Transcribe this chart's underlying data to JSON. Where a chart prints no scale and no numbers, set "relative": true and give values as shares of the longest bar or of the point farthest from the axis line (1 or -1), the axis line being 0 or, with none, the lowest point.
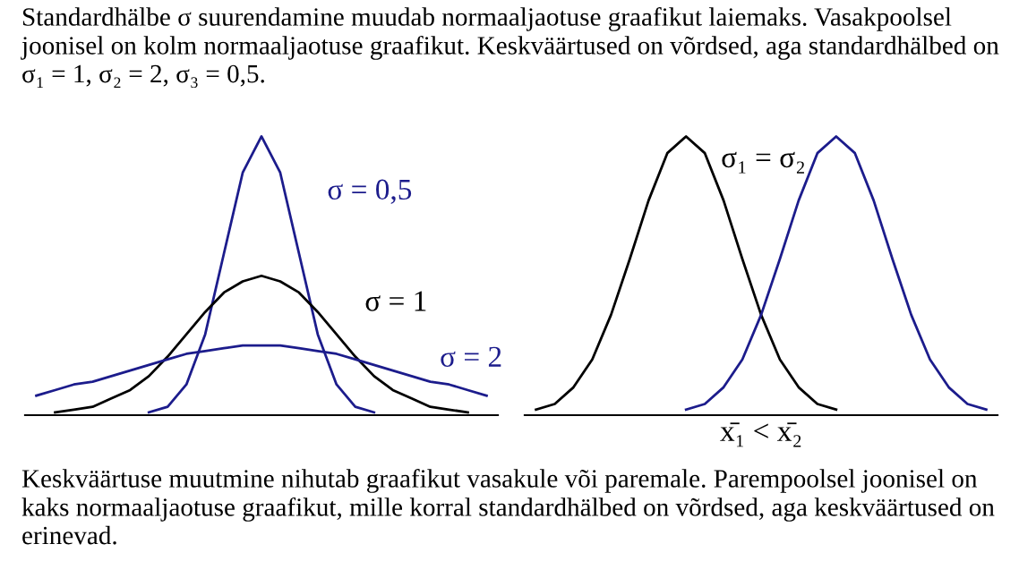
{
  "chart_data": [
    {
      "type": "line",
      "relative": true,
      "tick_labels": false,
      "grid": false,
      "legend": false,
      "marker": "none",
      "line_style": "solid",
      "title": "Standardhälbe σ suurendamine muudab normaaljaotuse graafikut laiemaks. Vasakpoolsel joonisel on kolm normaaljaotuse graafikut. Keskväärtused on võrdsed, aga standardhälbed on σ₁ = 1, σ₂ = 2, σ₃ = 0,5.",
      "categories": [
        null,
        null,
        null,
        null,
        null,
        null,
        null,
        null,
        null,
        null,
        null,
        null,
        null,
        null,
        null,
        null,
        null,
        null,
        null,
        null,
        null,
        null,
        null,
        null,
        null
      ],
      "series": [
        {
          "name": "σ = 0,5",
          "color": "#1c1c8c",
          "values": [
            null,
            null,
            null,
            null,
            null,
            null,
            0.01,
            0.03,
            0.11,
            0.29,
            0.58,
            0.87,
            1.0,
            0.87,
            0.58,
            0.29,
            0.11,
            0.03,
            0.01,
            null,
            null,
            null,
            null,
            null,
            null
          ]
        },
        {
          "name": "σ = 1",
          "color": "#000000",
          "values": [
            null,
            0.01,
            0.02,
            0.03,
            0.06,
            0.09,
            0.14,
            0.21,
            0.29,
            0.37,
            0.44,
            0.48,
            0.5,
            0.48,
            0.44,
            0.37,
            0.29,
            0.21,
            0.14,
            0.09,
            0.06,
            0.03,
            0.02,
            0.01,
            null
          ]
        },
        {
          "name": "σ = 2",
          "color": "#1c1c8c",
          "values": [
            0.07,
            0.09,
            0.11,
            0.12,
            0.14,
            0.16,
            0.18,
            0.2,
            0.22,
            0.23,
            0.24,
            0.25,
            0.25,
            0.25,
            0.24,
            0.23,
            0.22,
            0.2,
            0.18,
            0.16,
            0.14,
            0.12,
            0.11,
            0.09,
            0.07
          ]
        }
      ]
    },
    {
      "type": "line",
      "relative": true,
      "tick_labels": false,
      "grid": false,
      "legend": false,
      "marker": "none",
      "line_style": "solid",
      "xlabel": "x̄₁ < x̄₂",
      "annotations": [
        "σ₁ = σ₂",
        "Keskväärtuse muutmine nihutab graafikut vasakule või paremale. Parempoolsel joonisel on kaks normaaljaotuse graafikut, mille korral standardhälbed on võrdsed, aga keskväärtused on erinevad."
      ],
      "categories": [
        null,
        null,
        null,
        null,
        null,
        null,
        null,
        null,
        null,
        null,
        null,
        null,
        null,
        null,
        null,
        null,
        null,
        null,
        null,
        null,
        null,
        null,
        null,
        null,
        null
      ],
      "series": [
        {
          "color": "#000000",
          "values": [
            0.02,
            0.04,
            0.1,
            0.2,
            0.36,
            0.56,
            0.77,
            0.94,
            1.0,
            0.94,
            0.77,
            0.56,
            0.36,
            0.2,
            0.1,
            0.04,
            0.02,
            null,
            null,
            null,
            null,
            null,
            null,
            null,
            null
          ]
        },
        {
          "color": "#1c1c8c",
          "values": [
            null,
            null,
            null,
            null,
            null,
            null,
            null,
            null,
            0.02,
            0.04,
            0.1,
            0.2,
            0.36,
            0.56,
            0.77,
            0.94,
            1.0,
            0.94,
            0.77,
            0.56,
            0.36,
            0.2,
            0.1,
            0.04,
            0.02
          ]
        }
      ]
    }
  ]
}
